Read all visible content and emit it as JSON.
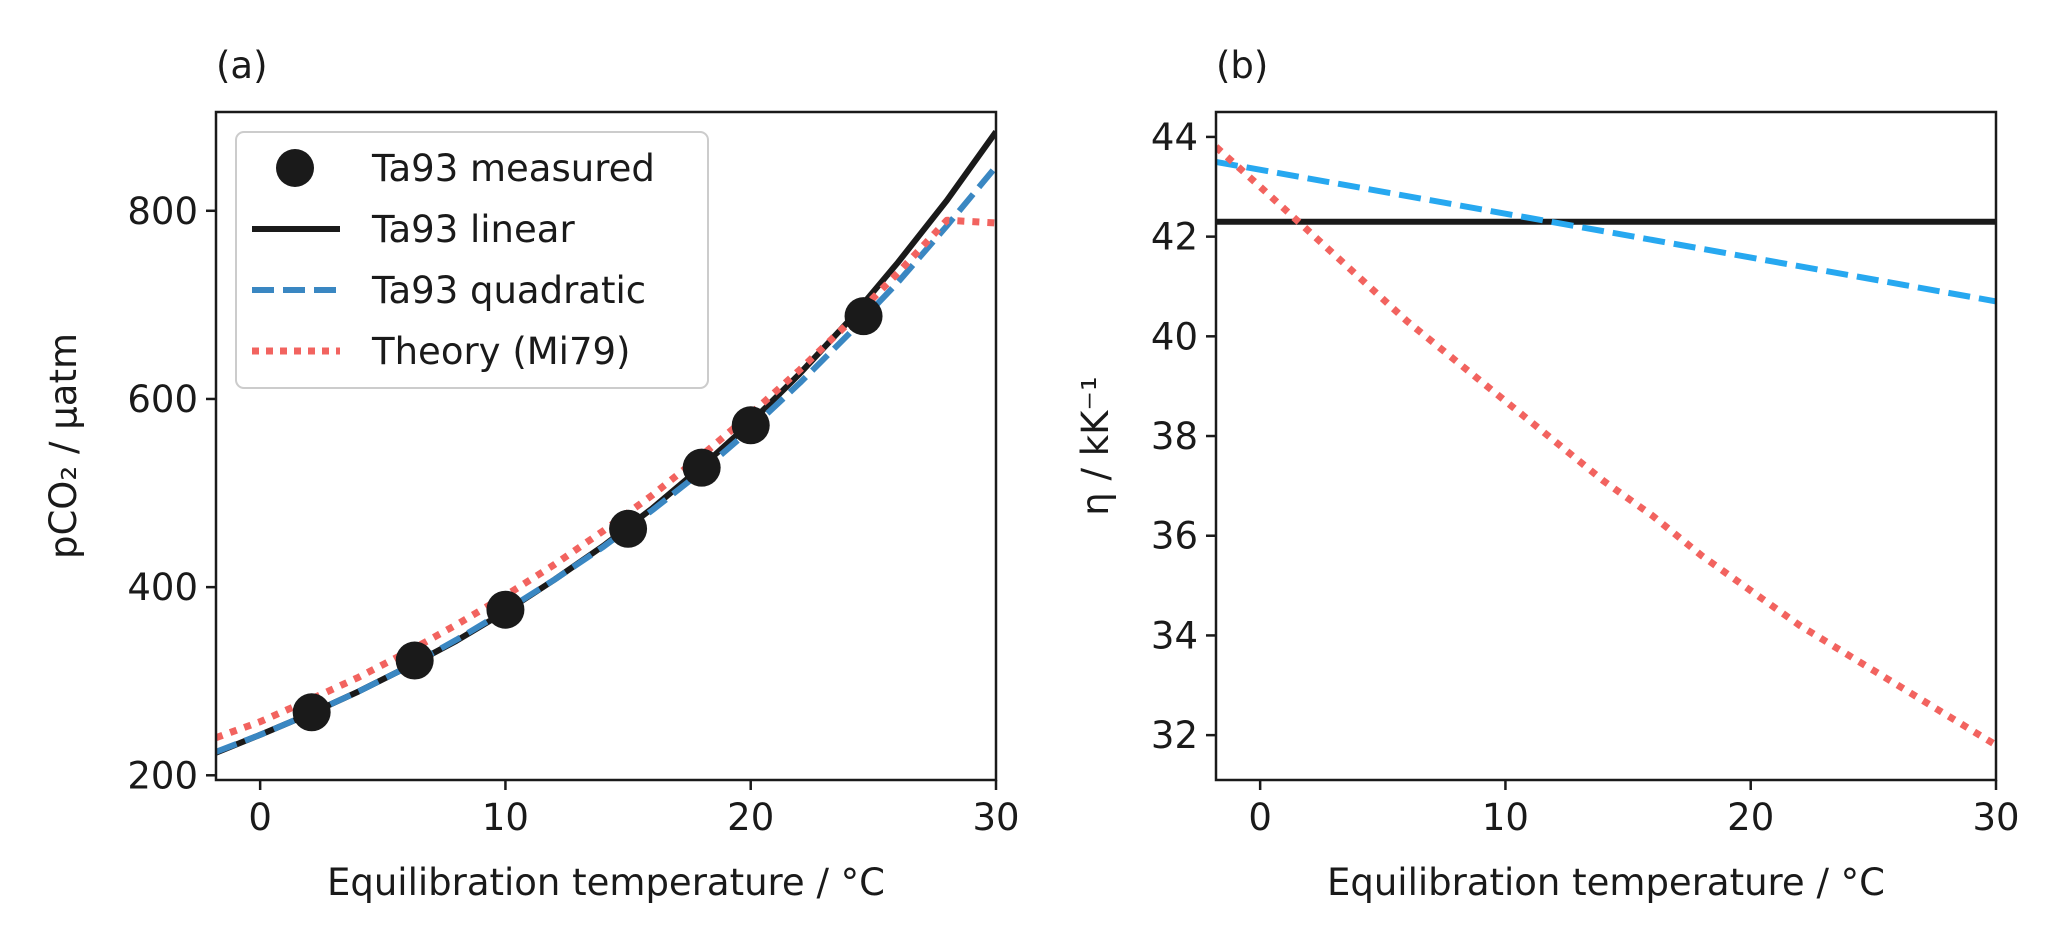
{
  "chart_data": [
    {
      "type": "line",
      "panel_label": "(a)",
      "xlabel": "Equilibration temperature / °C",
      "ylabel": "pCO₂ / µatm",
      "xlim": [
        -1.8,
        30
      ],
      "ylim": [
        195,
        905
      ],
      "xticks": [
        0,
        10,
        20,
        30
      ],
      "yticks": [
        200,
        400,
        600,
        800
      ],
      "grid": false,
      "legend": {
        "placement": "upper-left",
        "entries": [
          "Ta93 measured",
          "Ta93 linear",
          "Ta93 quadratic",
          "Theory (Mi79)"
        ]
      },
      "series": [
        {
          "name": "Ta93 measured",
          "style": "marker",
          "color": "#1a1a1a",
          "x": [
            2.1,
            6.3,
            10.0,
            15.0,
            18.0,
            20.0,
            24.6
          ],
          "y": [
            267,
            322,
            376,
            462,
            527,
            572,
            688
          ]
        },
        {
          "name": "Ta93 linear",
          "style": "solid",
          "color": "#1a1a1a",
          "x": [
            -1.8,
            0,
            2,
            4,
            6,
            8,
            10,
            12,
            14,
            16,
            18,
            20,
            22,
            24,
            26,
            28,
            30
          ],
          "y": [
            224,
            243,
            265,
            289,
            315,
            343,
            374,
            408,
            444,
            484,
            528,
            575,
            627,
            683,
            745,
            811,
            884
          ]
        },
        {
          "name": "Ta93 quadratic",
          "style": "dashed",
          "color": "#3a87c2",
          "x": [
            -1.8,
            0,
            2,
            4,
            6,
            8,
            10,
            12,
            14,
            16,
            18,
            20,
            22,
            24,
            26,
            28,
            30
          ],
          "y": [
            225,
            243,
            265,
            289,
            315,
            344,
            375,
            408,
            443,
            482,
            523,
            568,
            617,
            669,
            724,
            784,
            847
          ]
        },
        {
          "name": "Theory (Mi79)",
          "style": "dotted",
          "color": "#f2635f",
          "x": [
            -1.8,
            0,
            2,
            4,
            6,
            8,
            10,
            12,
            14,
            16,
            18,
            20,
            22,
            24,
            26,
            28,
            30
          ],
          "y": [
            240,
            257,
            280,
            304,
            331,
            360,
            391,
            424,
            460,
            498,
            540,
            584,
            631,
            681,
            734,
            790,
            787
          ]
        }
      ]
    },
    {
      "type": "line",
      "panel_label": "(b)",
      "xlabel": "Equilibration temperature / °C",
      "ylabel": "η / kK⁻¹",
      "xlim": [
        -1.8,
        30
      ],
      "ylim": [
        31.1,
        44.5
      ],
      "xticks": [
        0,
        10,
        20,
        30
      ],
      "yticks": [
        32,
        34,
        36,
        38,
        40,
        42,
        44
      ],
      "grid": false,
      "series": [
        {
          "name": "Ta93 linear",
          "style": "solid",
          "color": "#1a1a1a",
          "x": [
            -1.8,
            30
          ],
          "y": [
            42.3,
            42.3
          ]
        },
        {
          "name": "Ta93 quadratic",
          "style": "dashed",
          "color": "#27a8f0",
          "x": [
            -1.8,
            30
          ],
          "y": [
            43.5,
            40.7
          ]
        },
        {
          "name": "Theory (Mi79)",
          "style": "dotted",
          "color": "#f2635f",
          "x": [
            -1.8,
            0,
            2,
            4,
            6,
            8,
            10,
            12,
            14,
            16,
            18,
            20,
            22,
            24,
            26,
            28,
            30
          ],
          "y": [
            43.8,
            43.0,
            42.1,
            41.2,
            40.3,
            39.5,
            38.7,
            37.9,
            37.1,
            36.4,
            35.6,
            34.9,
            34.2,
            33.6,
            33.0,
            32.4,
            31.8
          ]
        }
      ]
    }
  ]
}
